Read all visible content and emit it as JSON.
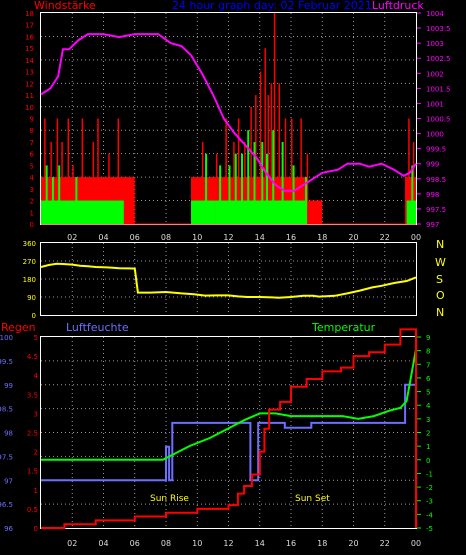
{
  "colors": {
    "wind": "#ff0000",
    "gust": "#00ff00",
    "pressure": "#ff00ff",
    "direction": "#ffff00",
    "rain": "#ff0000",
    "humidity": "#6f6fff",
    "temperature": "#00ff00",
    "compass": "#ffff00",
    "title": "#0000ff",
    "temp_label": "#00ff00",
    "frame": "#ffffff",
    "grid": "#9a9a9a"
  },
  "header": {
    "left": "Windstärke",
    "center": "24 hour graph day: 02 Februar 2021",
    "right": "Luftdruck"
  },
  "bottom_labels": {
    "rain": "Regen",
    "humidity": "Luftfeuchte",
    "temperature": "Temperatur",
    "sunrise": "Sun Rise",
    "sunset": "Sun Set"
  },
  "compass": [
    "N",
    "W",
    "S",
    "O",
    "N"
  ],
  "x_ticks": [
    "02",
    "04",
    "06",
    "08",
    "10",
    "12",
    "14",
    "16",
    "18",
    "20",
    "22",
    "00"
  ],
  "chart_data": [
    {
      "type": "bar",
      "title": "",
      "y_left_label": "Windstärke",
      "y_right_label": "Luftdruck",
      "y_left_ticks": [
        "0",
        "1",
        "2",
        "3",
        "4",
        "5",
        "6",
        "7",
        "8",
        "9",
        "10",
        "11",
        "12",
        "13",
        "14",
        "15",
        "16",
        "17",
        "18"
      ],
      "y_right_ticks": [
        "997",
        "997.5",
        "998",
        "998.5",
        "999",
        "999.5",
        "1000",
        "1000.5",
        "1001",
        "1001.5",
        "1002",
        "1002.5",
        "1003",
        "1003.5",
        "1004"
      ],
      "ylim_left": [
        0,
        18
      ],
      "ylim_right": [
        997,
        1004
      ],
      "hours_start": 0,
      "hours_end": 24,
      "wind_bands": [
        {
          "from": 0.0,
          "to": 6.0,
          "level": 4
        },
        {
          "from": 9.6,
          "to": 11.3,
          "level": 4
        },
        {
          "from": 11.3,
          "to": 17.1,
          "level": 4
        },
        {
          "from": 17.1,
          "to": 18.0,
          "level": 2
        },
        {
          "from": 23.3,
          "to": 24.0,
          "level": 4
        }
      ],
      "gust_bands": [
        {
          "from": 0.0,
          "to": 5.3,
          "level": 2
        },
        {
          "from": 9.6,
          "to": 11.1,
          "level": 2
        },
        {
          "from": 11.1,
          "to": 17.0,
          "level": 2
        },
        {
          "from": 23.4,
          "to": 24.0,
          "level": 2
        }
      ],
      "wind_spikes": [
        [
          0.2,
          9
        ],
        [
          0.6,
          7
        ],
        [
          1.0,
          9
        ],
        [
          1.3,
          7
        ],
        [
          1.7,
          9
        ],
        [
          2.0,
          5
        ],
        [
          2.6,
          9
        ],
        [
          3.3,
          7
        ],
        [
          3.6,
          9
        ],
        [
          4.3,
          6
        ],
        [
          4.9,
          9
        ],
        [
          10.3,
          7
        ],
        [
          11.2,
          6
        ],
        [
          11.8,
          9
        ],
        [
          12.3,
          7
        ],
        [
          12.6,
          9
        ],
        [
          13.0,
          7
        ],
        [
          13.4,
          10
        ],
        [
          13.7,
          11
        ],
        [
          14.0,
          13
        ],
        [
          14.3,
          15
        ],
        [
          14.5,
          11
        ],
        [
          14.7,
          12
        ],
        [
          14.9,
          18
        ],
        [
          15.2,
          12
        ],
        [
          15.6,
          9
        ],
        [
          16.0,
          9
        ],
        [
          16.6,
          9
        ],
        [
          17.0,
          6
        ],
        [
          17.6,
          2
        ],
        [
          23.5,
          9
        ],
        [
          23.8,
          7
        ]
      ],
      "gust_spikes": [
        [
          0.3,
          5
        ],
        [
          0.7,
          4
        ],
        [
          1.1,
          5
        ],
        [
          2.2,
          4
        ],
        [
          10.5,
          6
        ],
        [
          11.4,
          5
        ],
        [
          12.0,
          5
        ],
        [
          12.4,
          6
        ],
        [
          12.8,
          6
        ],
        [
          13.2,
          8
        ],
        [
          13.6,
          7
        ],
        [
          14.1,
          7
        ],
        [
          14.4,
          6
        ],
        [
          14.8,
          8
        ],
        [
          15.4,
          7
        ],
        [
          16.1,
          5
        ],
        [
          16.9,
          4
        ],
        [
          23.7,
          5
        ]
      ],
      "pressure_series": [
        [
          0.0,
          1001.3
        ],
        [
          0.6,
          1001.5
        ],
        [
          1.1,
          1001.9
        ],
        [
          1.4,
          1002.8
        ],
        [
          1.8,
          1002.8
        ],
        [
          2.4,
          1003.1
        ],
        [
          3.0,
          1003.3
        ],
        [
          4.0,
          1003.3
        ],
        [
          5.0,
          1003.2
        ],
        [
          6.0,
          1003.3
        ],
        [
          6.5,
          1003.3
        ],
        [
          7.5,
          1003.3
        ],
        [
          8.3,
          1003.0
        ],
        [
          9.0,
          1002.9
        ],
        [
          9.6,
          1002.6
        ],
        [
          10.3,
          1002.0
        ],
        [
          11.0,
          1001.3
        ],
        [
          11.7,
          1000.5
        ],
        [
          12.4,
          1000.0
        ],
        [
          13.1,
          999.6
        ],
        [
          13.8,
          999.2
        ],
        [
          14.4,
          998.7
        ],
        [
          15.0,
          998.3
        ],
        [
          15.6,
          998.1
        ],
        [
          16.2,
          998.1
        ],
        [
          16.8,
          998.3
        ],
        [
          17.4,
          998.5
        ],
        [
          18.0,
          998.7
        ],
        [
          19.0,
          998.8
        ],
        [
          19.6,
          999.0
        ],
        [
          20.4,
          999.0
        ],
        [
          21.0,
          998.9
        ],
        [
          21.8,
          999.0
        ],
        [
          22.6,
          998.8
        ],
        [
          23.2,
          998.6
        ],
        [
          23.6,
          998.7
        ],
        [
          24.0,
          999.0
        ]
      ]
    },
    {
      "type": "line",
      "title": "",
      "series": [
        {
          "name": "",
          "unit": "deg"
        }
      ],
      "y_ticks": [
        "0",
        "90",
        "180",
        "270",
        "360"
      ],
      "ylim": [
        0,
        360
      ],
      "points": [
        [
          0.0,
          240
        ],
        [
          0.5,
          250
        ],
        [
          1.0,
          256
        ],
        [
          1.4,
          255
        ],
        [
          2.0,
          252
        ],
        [
          2.5,
          246
        ],
        [
          3.0,
          244
        ],
        [
          3.5,
          240
        ],
        [
          4.2,
          238
        ],
        [
          4.6,
          236
        ],
        [
          5.0,
          234
        ],
        [
          5.6,
          233
        ],
        [
          6.0,
          232
        ],
        [
          6.2,
          112
        ],
        [
          7.0,
          112
        ],
        [
          8.0,
          115
        ],
        [
          9.0,
          108
        ],
        [
          9.8,
          104
        ],
        [
          10.5,
          97
        ],
        [
          11.2,
          98
        ],
        [
          12.0,
          98
        ],
        [
          12.6,
          93
        ],
        [
          13.2,
          90
        ],
        [
          14.0,
          90
        ],
        [
          14.8,
          88
        ],
        [
          15.2,
          86
        ],
        [
          16.0,
          90
        ],
        [
          16.8,
          96
        ],
        [
          17.4,
          96
        ],
        [
          17.8,
          92
        ],
        [
          18.8,
          96
        ],
        [
          19.6,
          108
        ],
        [
          20.4,
          122
        ],
        [
          21.2,
          138
        ],
        [
          21.8,
          146
        ],
        [
          22.6,
          160
        ],
        [
          23.4,
          170
        ],
        [
          24.0,
          188
        ]
      ]
    },
    {
      "type": "line",
      "title": "",
      "y_left_ticks": [
        "96",
        "96.5",
        "97",
        "97.5",
        "98",
        "98.5",
        "99",
        "99.5",
        "100"
      ],
      "y_mid_ticks": [
        "0",
        "0.5",
        "1",
        "1.5",
        "2",
        "2.5",
        "3",
        "3.5",
        "4",
        "4.5",
        "5"
      ],
      "y_right_ticks": [
        "-5",
        "-4",
        "-3",
        "-2",
        "-1",
        "0",
        "1",
        "2",
        "3",
        "4",
        "5",
        "6",
        "7",
        "8",
        "9"
      ],
      "ylim_humidity": [
        96,
        100
      ],
      "ylim_rain": [
        0,
        5
      ],
      "ylim_temperature": [
        -5,
        9
      ],
      "humidity": [
        [
          0.0,
          97.0
        ],
        [
          8.0,
          97.0
        ],
        [
          8.0,
          97.7
        ],
        [
          8.2,
          97.7
        ],
        [
          8.2,
          97.0
        ],
        [
          8.4,
          97.0
        ],
        [
          8.4,
          98.2
        ],
        [
          13.4,
          98.2
        ],
        [
          13.4,
          97.0
        ],
        [
          13.9,
          97.0
        ],
        [
          13.9,
          98.2
        ],
        [
          14.2,
          98.2
        ],
        [
          15.6,
          98.2
        ],
        [
          15.6,
          98.1
        ],
        [
          17.3,
          98.1
        ],
        [
          17.3,
          98.2
        ],
        [
          23.3,
          98.2
        ],
        [
          23.3,
          99.0
        ],
        [
          24.0,
          99.0
        ],
        [
          24.0,
          99.5
        ]
      ],
      "rain": [
        [
          0.0,
          0.0
        ],
        [
          1.5,
          0.0
        ],
        [
          1.5,
          0.1
        ],
        [
          3.5,
          0.1
        ],
        [
          3.5,
          0.2
        ],
        [
          6.0,
          0.2
        ],
        [
          6.0,
          0.3
        ],
        [
          8.0,
          0.3
        ],
        [
          8.0,
          0.4
        ],
        [
          10.0,
          0.4
        ],
        [
          10.0,
          0.5
        ],
        [
          12.0,
          0.5
        ],
        [
          12.0,
          0.6
        ],
        [
          12.6,
          0.6
        ],
        [
          12.6,
          0.9
        ],
        [
          13.0,
          0.9
        ],
        [
          13.0,
          1.1
        ],
        [
          13.5,
          1.1
        ],
        [
          13.5,
          1.4
        ],
        [
          14.0,
          1.4
        ],
        [
          14.0,
          2.0
        ],
        [
          14.3,
          2.0
        ],
        [
          14.3,
          2.6
        ],
        [
          14.6,
          2.6
        ],
        [
          14.6,
          3.1
        ],
        [
          15.3,
          3.1
        ],
        [
          15.3,
          3.3
        ],
        [
          16.0,
          3.3
        ],
        [
          16.0,
          3.7
        ],
        [
          17.0,
          3.7
        ],
        [
          17.0,
          3.9
        ],
        [
          18.0,
          3.9
        ],
        [
          18.0,
          4.1
        ],
        [
          19.2,
          4.1
        ],
        [
          19.2,
          4.2
        ],
        [
          20.0,
          4.2
        ],
        [
          20.0,
          4.5
        ],
        [
          21.0,
          4.5
        ],
        [
          21.0,
          4.6
        ],
        [
          22.0,
          4.6
        ],
        [
          22.0,
          4.8
        ],
        [
          23.0,
          4.8
        ],
        [
          23.0,
          5.2
        ],
        [
          24.0,
          5.2
        ],
        [
          24.0,
          0.0
        ]
      ],
      "temperature": [
        [
          0.0,
          0.0
        ],
        [
          7.8,
          0.0
        ],
        [
          8.3,
          0.3
        ],
        [
          9.5,
          1.0
        ],
        [
          10.8,
          1.6
        ],
        [
          12.0,
          2.3
        ],
        [
          13.0,
          2.9
        ],
        [
          14.0,
          3.4
        ],
        [
          15.0,
          3.4
        ],
        [
          16.0,
          3.2
        ],
        [
          17.0,
          3.2
        ],
        [
          18.2,
          3.2
        ],
        [
          19.3,
          3.2
        ],
        [
          20.3,
          3.0
        ],
        [
          21.3,
          3.2
        ],
        [
          22.3,
          3.6
        ],
        [
          23.0,
          3.8
        ],
        [
          23.4,
          4.3
        ],
        [
          23.7,
          6.2
        ],
        [
          24.0,
          8.1
        ]
      ],
      "sunrise_hour": 8.2,
      "sunset_hour": 17.3
    }
  ]
}
